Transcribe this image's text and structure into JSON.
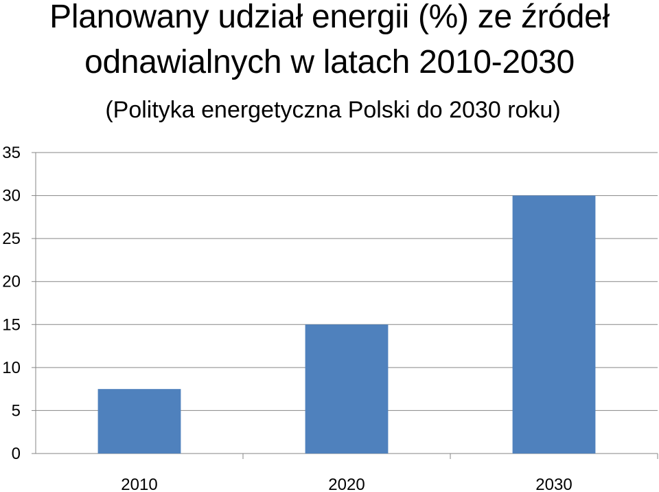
{
  "title_line1": "Planowany udział energii (%) ze źródeł",
  "title_line2": "odnawialnych w latach 2010-2030",
  "subtitle": "(Polityka energetyczna Polski do 2030 roku)",
  "chart_data": {
    "type": "bar",
    "title": "Planowany udział energii (%) ze źródeł odnawialnych w latach 2010-2030",
    "subtitle": "(Polityka energetyczna Polski do 2030 roku)",
    "categories": [
      "2010",
      "2020",
      "2030"
    ],
    "values": [
      7.5,
      15,
      30
    ],
    "ylim": [
      0,
      35
    ],
    "yticks": [
      0,
      5,
      10,
      15,
      20,
      25,
      30,
      35
    ],
    "grid": true,
    "legend": "none",
    "bar_color": "#4F81BD"
  }
}
